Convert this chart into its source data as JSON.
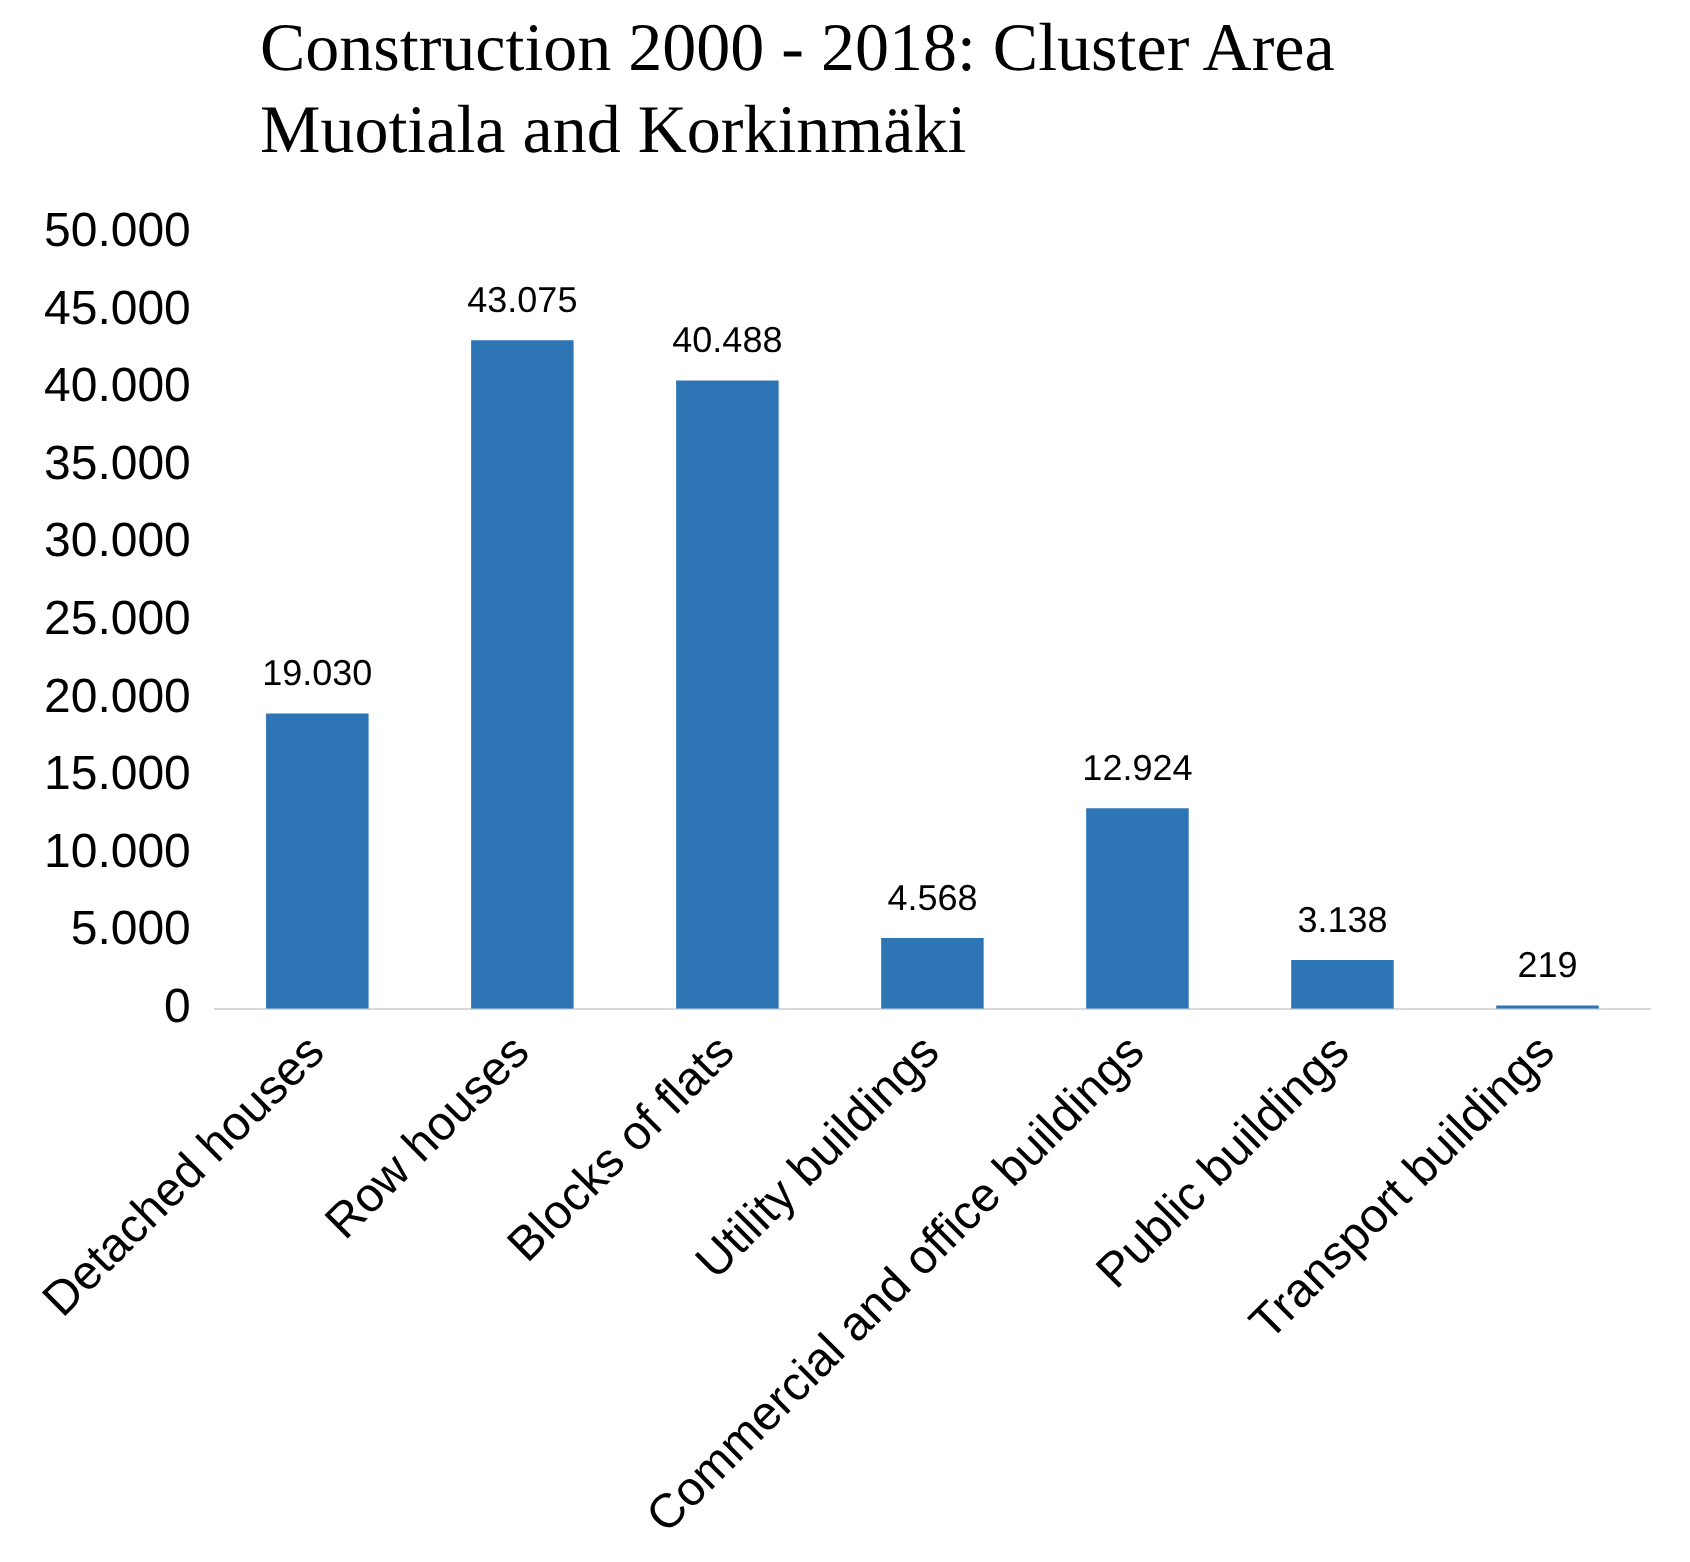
{
  "chart_data": {
    "type": "bar",
    "title": "Construction 2000 - 2018: Cluster Area Muotiala and Korkinmäki",
    "categories": [
      "Detached houses",
      "Row houses",
      "Blocks of flats",
      "Utility buildings",
      "Commercial and office buildings",
      "Public buildings",
      "Transport buildings"
    ],
    "values": [
      19030,
      43075,
      40488,
      4568,
      12924,
      3138,
      219
    ],
    "value_labels": [
      "19.030",
      "43.075",
      "40.488",
      "4.568",
      "12.924",
      "3.138",
      "219"
    ],
    "color": "#2e75b6",
    "ylim": [
      0,
      50000
    ],
    "yticks": [
      {
        "value": 0,
        "label": "0"
      },
      {
        "value": 5000,
        "label": "5.000"
      },
      {
        "value": 10000,
        "label": "10.000"
      },
      {
        "value": 15000,
        "label": "15.000"
      },
      {
        "value": 20000,
        "label": "20.000"
      },
      {
        "value": 25000,
        "label": "25.000"
      },
      {
        "value": 30000,
        "label": "30.000"
      },
      {
        "value": 35000,
        "label": "35.000"
      },
      {
        "value": 40000,
        "label": "40.000"
      },
      {
        "value": 45000,
        "label": "45.000"
      },
      {
        "value": 50000,
        "label": "50.000"
      }
    ],
    "grid": false,
    "legend": false
  }
}
